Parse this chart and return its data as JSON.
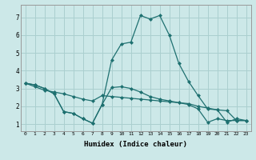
{
  "xlabel": "Humidex (Indice chaleur)",
  "bg_color": "#cce8e8",
  "grid_color": "#aacfcf",
  "line_color": "#1e7070",
  "x_ticks": [
    0,
    1,
    2,
    3,
    4,
    5,
    6,
    7,
    8,
    9,
    10,
    11,
    12,
    13,
    14,
    15,
    16,
    17,
    18,
    19,
    20,
    21,
    22,
    23
  ],
  "y_ticks": [
    1,
    2,
    3,
    4,
    5,
    6,
    7
  ],
  "ylim": [
    0.6,
    7.7
  ],
  "xlim": [
    -0.5,
    23.5
  ],
  "line1_x": [
    0,
    1,
    2,
    3,
    4,
    5,
    6,
    7,
    8,
    9,
    10,
    11,
    12,
    13,
    14,
    15,
    16,
    17,
    18,
    19,
    20,
    21,
    22,
    23
  ],
  "line1_y": [
    3.3,
    3.2,
    3.0,
    2.7,
    1.7,
    1.6,
    1.3,
    1.05,
    2.1,
    3.05,
    3.1,
    3.0,
    2.8,
    2.55,
    2.4,
    2.3,
    2.2,
    2.1,
    1.85,
    1.1,
    1.3,
    1.2,
    1.2,
    1.2
  ],
  "line2_x": [
    0,
    1,
    2,
    3,
    4,
    5,
    6,
    7,
    8,
    9,
    10,
    11,
    12,
    13,
    14,
    15,
    16,
    17,
    18,
    19,
    20,
    21,
    22,
    23
  ],
  "line2_y": [
    3.3,
    3.2,
    3.0,
    2.7,
    1.7,
    1.6,
    1.3,
    1.05,
    2.1,
    4.6,
    5.5,
    5.6,
    7.1,
    6.9,
    7.1,
    6.0,
    4.4,
    3.4,
    2.6,
    1.85,
    1.8,
    1.1,
    1.3,
    1.2
  ],
  "line3_x": [
    0,
    1,
    2,
    3,
    4,
    5,
    6,
    7,
    8,
    9,
    10,
    11,
    12,
    13,
    14,
    15,
    16,
    17,
    18,
    19,
    20,
    21,
    22,
    23
  ],
  "line3_y": [
    3.3,
    3.1,
    2.9,
    2.8,
    2.7,
    2.55,
    2.4,
    2.3,
    2.6,
    2.55,
    2.5,
    2.45,
    2.4,
    2.35,
    2.3,
    2.25,
    2.2,
    2.15,
    2.0,
    1.9,
    1.8,
    1.75,
    1.2,
    1.2
  ]
}
